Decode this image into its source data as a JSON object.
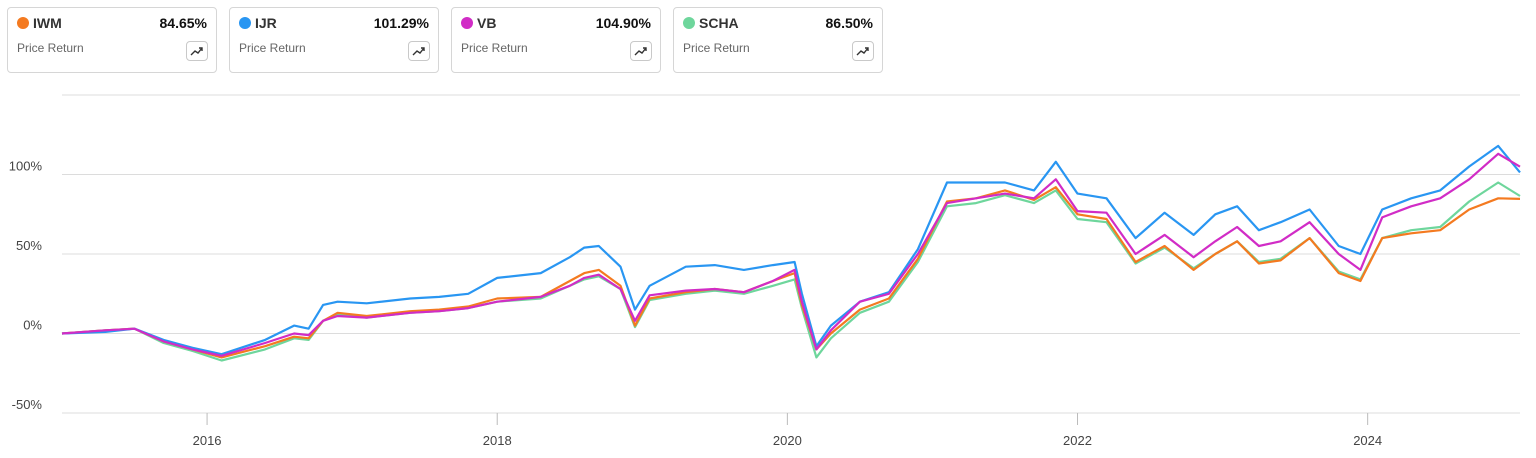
{
  "cards": [
    {
      "ticker": "IWM",
      "value": "84.65%",
      "label": "Price Return",
      "color": "#f47a20",
      "icon": "trend-up-icon"
    },
    {
      "ticker": "IJR",
      "value": "101.29%",
      "label": "Price Return",
      "color": "#2996f2",
      "icon": "trend-up-icon"
    },
    {
      "ticker": "VB",
      "value": "104.90%",
      "label": "Price Return",
      "color": "#d12cc6",
      "icon": "trend-up-icon"
    },
    {
      "ticker": "SCHA",
      "value": "86.50%",
      "label": "Price Return",
      "color": "#6ed69c",
      "icon": "trend-up-icon"
    }
  ],
  "chart_data": {
    "type": "line",
    "xlabel": "",
    "ylabel": "",
    "x_ticks": [
      "2016",
      "2018",
      "2020",
      "2022",
      "2024"
    ],
    "y_ticks": [
      "100%",
      "50%",
      "0%",
      "-50%"
    ],
    "ylim": [
      -50,
      150
    ],
    "xlim": [
      2015.0,
      2025.05
    ],
    "grid": true,
    "series": [
      {
        "name": "IWM",
        "color": "#f47a20",
        "points": [
          [
            2015.0,
            0
          ],
          [
            2015.3,
            2
          ],
          [
            2015.5,
            3
          ],
          [
            2015.7,
            -5
          ],
          [
            2015.9,
            -10
          ],
          [
            2016.1,
            -15
          ],
          [
            2016.4,
            -8
          ],
          [
            2016.6,
            -2
          ],
          [
            2016.7,
            -3
          ],
          [
            2016.8,
            8
          ],
          [
            2016.9,
            13
          ],
          [
            2017.1,
            11
          ],
          [
            2017.4,
            14
          ],
          [
            2017.6,
            15
          ],
          [
            2017.8,
            17
          ],
          [
            2018.0,
            22
          ],
          [
            2018.3,
            23
          ],
          [
            2018.5,
            33
          ],
          [
            2018.6,
            38
          ],
          [
            2018.7,
            40
          ],
          [
            2018.85,
            30
          ],
          [
            2018.95,
            5
          ],
          [
            2019.05,
            22
          ],
          [
            2019.3,
            26
          ],
          [
            2019.5,
            28
          ],
          [
            2019.7,
            26
          ],
          [
            2019.9,
            33
          ],
          [
            2020.05,
            38
          ],
          [
            2020.1,
            18
          ],
          [
            2020.2,
            -10
          ],
          [
            2020.3,
            0
          ],
          [
            2020.5,
            15
          ],
          [
            2020.7,
            22
          ],
          [
            2020.9,
            47
          ],
          [
            2021.1,
            83
          ],
          [
            2021.3,
            85
          ],
          [
            2021.5,
            90
          ],
          [
            2021.7,
            84
          ],
          [
            2021.85,
            92
          ],
          [
            2022.0,
            75
          ],
          [
            2022.2,
            72
          ],
          [
            2022.4,
            45
          ],
          [
            2022.6,
            55
          ],
          [
            2022.8,
            40
          ],
          [
            2022.95,
            50
          ],
          [
            2023.1,
            58
          ],
          [
            2023.25,
            44
          ],
          [
            2023.4,
            46
          ],
          [
            2023.6,
            60
          ],
          [
            2023.8,
            38
          ],
          [
            2023.95,
            33
          ],
          [
            2024.1,
            60
          ],
          [
            2024.3,
            63
          ],
          [
            2024.5,
            65
          ],
          [
            2024.7,
            78
          ],
          [
            2024.9,
            85
          ],
          [
            2025.05,
            84.65
          ]
        ]
      },
      {
        "name": "IJR",
        "color": "#2996f2",
        "points": [
          [
            2015.0,
            0
          ],
          [
            2015.3,
            1
          ],
          [
            2015.5,
            3
          ],
          [
            2015.7,
            -4
          ],
          [
            2015.9,
            -9
          ],
          [
            2016.1,
            -13
          ],
          [
            2016.4,
            -4
          ],
          [
            2016.6,
            5
          ],
          [
            2016.7,
            3
          ],
          [
            2016.8,
            18
          ],
          [
            2016.9,
            20
          ],
          [
            2017.1,
            19
          ],
          [
            2017.4,
            22
          ],
          [
            2017.6,
            23
          ],
          [
            2017.8,
            25
          ],
          [
            2018.0,
            35
          ],
          [
            2018.3,
            38
          ],
          [
            2018.5,
            48
          ],
          [
            2018.6,
            54
          ],
          [
            2018.7,
            55
          ],
          [
            2018.85,
            42
          ],
          [
            2018.95,
            15
          ],
          [
            2019.05,
            30
          ],
          [
            2019.3,
            42
          ],
          [
            2019.5,
            43
          ],
          [
            2019.7,
            40
          ],
          [
            2019.9,
            43
          ],
          [
            2020.05,
            45
          ],
          [
            2020.1,
            25
          ],
          [
            2020.2,
            -8
          ],
          [
            2020.3,
            5
          ],
          [
            2020.5,
            20
          ],
          [
            2020.7,
            26
          ],
          [
            2020.9,
            53
          ],
          [
            2021.1,
            95
          ],
          [
            2021.3,
            95
          ],
          [
            2021.5,
            95
          ],
          [
            2021.7,
            90
          ],
          [
            2021.85,
            108
          ],
          [
            2022.0,
            88
          ],
          [
            2022.2,
            85
          ],
          [
            2022.4,
            60
          ],
          [
            2022.6,
            76
          ],
          [
            2022.8,
            62
          ],
          [
            2022.95,
            75
          ],
          [
            2023.1,
            80
          ],
          [
            2023.25,
            65
          ],
          [
            2023.4,
            70
          ],
          [
            2023.6,
            78
          ],
          [
            2023.8,
            55
          ],
          [
            2023.95,
            50
          ],
          [
            2024.1,
            78
          ],
          [
            2024.3,
            85
          ],
          [
            2024.5,
            90
          ],
          [
            2024.7,
            105
          ],
          [
            2024.9,
            118
          ],
          [
            2025.05,
            101.29
          ]
        ]
      },
      {
        "name": "VB",
        "color": "#d12cc6",
        "points": [
          [
            2015.0,
            0
          ],
          [
            2015.3,
            2
          ],
          [
            2015.5,
            3
          ],
          [
            2015.7,
            -5
          ],
          [
            2015.9,
            -10
          ],
          [
            2016.1,
            -14
          ],
          [
            2016.4,
            -6
          ],
          [
            2016.6,
            0
          ],
          [
            2016.7,
            -1
          ],
          [
            2016.8,
            8
          ],
          [
            2016.9,
            11
          ],
          [
            2017.1,
            10
          ],
          [
            2017.4,
            13
          ],
          [
            2017.6,
            14
          ],
          [
            2017.8,
            16
          ],
          [
            2018.0,
            20
          ],
          [
            2018.3,
            23
          ],
          [
            2018.5,
            30
          ],
          [
            2018.6,
            35
          ],
          [
            2018.7,
            37
          ],
          [
            2018.85,
            28
          ],
          [
            2018.95,
            8
          ],
          [
            2019.05,
            24
          ],
          [
            2019.3,
            27
          ],
          [
            2019.5,
            28
          ],
          [
            2019.7,
            26
          ],
          [
            2019.9,
            33
          ],
          [
            2020.05,
            40
          ],
          [
            2020.1,
            20
          ],
          [
            2020.2,
            -10
          ],
          [
            2020.3,
            2
          ],
          [
            2020.5,
            20
          ],
          [
            2020.7,
            25
          ],
          [
            2020.9,
            50
          ],
          [
            2021.1,
            82
          ],
          [
            2021.3,
            85
          ],
          [
            2021.5,
            88
          ],
          [
            2021.7,
            85
          ],
          [
            2021.85,
            97
          ],
          [
            2022.0,
            77
          ],
          [
            2022.2,
            76
          ],
          [
            2022.4,
            50
          ],
          [
            2022.6,
            62
          ],
          [
            2022.8,
            48
          ],
          [
            2022.95,
            58
          ],
          [
            2023.1,
            67
          ],
          [
            2023.25,
            55
          ],
          [
            2023.4,
            58
          ],
          [
            2023.6,
            70
          ],
          [
            2023.8,
            50
          ],
          [
            2023.95,
            40
          ],
          [
            2024.1,
            73
          ],
          [
            2024.3,
            80
          ],
          [
            2024.5,
            85
          ],
          [
            2024.7,
            97
          ],
          [
            2024.9,
            113
          ],
          [
            2025.05,
            104.9
          ]
        ]
      },
      {
        "name": "SCHA",
        "color": "#6ed69c",
        "points": [
          [
            2015.0,
            0
          ],
          [
            2015.3,
            2
          ],
          [
            2015.5,
            3
          ],
          [
            2015.7,
            -6
          ],
          [
            2015.9,
            -11
          ],
          [
            2016.1,
            -17
          ],
          [
            2016.4,
            -10
          ],
          [
            2016.6,
            -3
          ],
          [
            2016.7,
            -4
          ],
          [
            2016.8,
            8
          ],
          [
            2016.9,
            12
          ],
          [
            2017.1,
            10
          ],
          [
            2017.4,
            13
          ],
          [
            2017.6,
            14
          ],
          [
            2017.8,
            16
          ],
          [
            2018.0,
            20
          ],
          [
            2018.3,
            22
          ],
          [
            2018.5,
            30
          ],
          [
            2018.6,
            34
          ],
          [
            2018.7,
            36
          ],
          [
            2018.85,
            28
          ],
          [
            2018.95,
            4
          ],
          [
            2019.05,
            21
          ],
          [
            2019.3,
            25
          ],
          [
            2019.5,
            27
          ],
          [
            2019.7,
            25
          ],
          [
            2019.9,
            30
          ],
          [
            2020.05,
            34
          ],
          [
            2020.1,
            16
          ],
          [
            2020.2,
            -15
          ],
          [
            2020.3,
            -3
          ],
          [
            2020.5,
            13
          ],
          [
            2020.7,
            20
          ],
          [
            2020.9,
            45
          ],
          [
            2021.1,
            80
          ],
          [
            2021.3,
            82
          ],
          [
            2021.5,
            87
          ],
          [
            2021.7,
            82
          ],
          [
            2021.85,
            90
          ],
          [
            2022.0,
            72
          ],
          [
            2022.2,
            70
          ],
          [
            2022.4,
            44
          ],
          [
            2022.6,
            54
          ],
          [
            2022.8,
            41
          ],
          [
            2022.95,
            50
          ],
          [
            2023.1,
            58
          ],
          [
            2023.25,
            45
          ],
          [
            2023.4,
            47
          ],
          [
            2023.6,
            60
          ],
          [
            2023.8,
            39
          ],
          [
            2023.95,
            34
          ],
          [
            2024.1,
            60
          ],
          [
            2024.3,
            65
          ],
          [
            2024.5,
            67
          ],
          [
            2024.7,
            83
          ],
          [
            2024.9,
            95
          ],
          [
            2025.05,
            86.5
          ]
        ]
      }
    ]
  }
}
